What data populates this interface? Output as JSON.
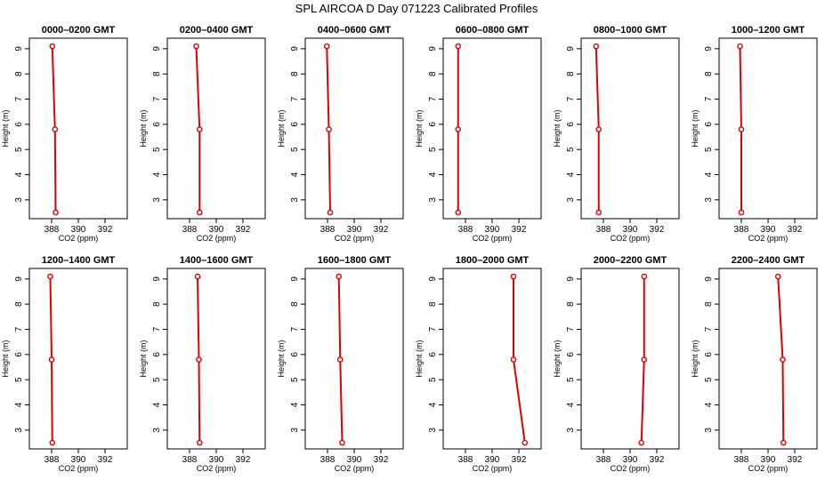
{
  "figure": {
    "title": "SPL AIRCOA D  Day 071223  Calibrated Profiles"
  },
  "colors": {
    "line": "#e00000",
    "marker": "#e00000",
    "axis": "#000000"
  },
  "chart_data": [
    {
      "type": "line",
      "title": "0000–0200 GMT",
      "xlabel": "CO2 (ppm)",
      "ylabel": "Height (m)",
      "xlim": [
        387,
        393
      ],
      "ylim": [
        2.5,
        9.1
      ],
      "xticks": [
        388,
        390,
        392
      ],
      "yticks": [
        3,
        4,
        5,
        6,
        7,
        8,
        9
      ],
      "series": [
        {
          "x": [
            388.05,
            388.25,
            388.3
          ],
          "y": [
            9.1,
            5.8,
            2.5
          ]
        }
      ]
    },
    {
      "type": "line",
      "title": "0200–0400 GMT",
      "xlabel": "CO2 (ppm)",
      "ylabel": "Height (m)",
      "xlim": [
        387,
        393
      ],
      "ylim": [
        2.5,
        9.1
      ],
      "xticks": [
        388,
        390,
        392
      ],
      "yticks": [
        3,
        4,
        5,
        6,
        7,
        8,
        9
      ],
      "series": [
        {
          "x": [
            388.5,
            388.75,
            388.75
          ],
          "y": [
            9.1,
            5.8,
            2.5
          ]
        }
      ]
    },
    {
      "type": "line",
      "title": "0400–0600 GMT",
      "xlabel": "CO2 (ppm)",
      "ylabel": "Height (m)",
      "xlim": [
        387,
        393
      ],
      "ylim": [
        2.5,
        9.1
      ],
      "xticks": [
        388,
        390,
        392
      ],
      "yticks": [
        3,
        4,
        5,
        6,
        7,
        8,
        9
      ],
      "series": [
        {
          "x": [
            387.95,
            388.1,
            388.2
          ],
          "y": [
            9.1,
            5.8,
            2.5
          ]
        }
      ]
    },
    {
      "type": "line",
      "title": "0600–0800 GMT",
      "xlabel": "CO2 (ppm)",
      "ylabel": "Height (m)",
      "xlim": [
        387,
        393
      ],
      "ylim": [
        2.5,
        9.1
      ],
      "xticks": [
        388,
        390,
        392
      ],
      "yticks": [
        3,
        4,
        5,
        6,
        7,
        8,
        9
      ],
      "series": [
        {
          "x": [
            387.45,
            387.45,
            387.45
          ],
          "y": [
            9.1,
            5.8,
            2.5
          ]
        }
      ]
    },
    {
      "type": "line",
      "title": "0800–1000 GMT",
      "xlabel": "CO2 (ppm)",
      "ylabel": "Height (m)",
      "xlim": [
        387,
        393
      ],
      "ylim": [
        2.5,
        9.1
      ],
      "xticks": [
        388,
        390,
        392
      ],
      "yticks": [
        3,
        4,
        5,
        6,
        7,
        8,
        9
      ],
      "series": [
        {
          "x": [
            387.45,
            387.65,
            387.65
          ],
          "y": [
            9.1,
            5.8,
            2.5
          ]
        }
      ]
    },
    {
      "type": "line",
      "title": "1000–1200 GMT",
      "xlabel": "CO2 (ppm)",
      "ylabel": "Height (m)",
      "xlim": [
        387,
        393
      ],
      "ylim": [
        2.5,
        9.1
      ],
      "xticks": [
        388,
        390,
        392
      ],
      "yticks": [
        3,
        4,
        5,
        6,
        7,
        8,
        9
      ],
      "series": [
        {
          "x": [
            387.9,
            388.0,
            388.0
          ],
          "y": [
            9.1,
            5.8,
            2.5
          ]
        }
      ]
    },
    {
      "type": "line",
      "title": "1200–1400 GMT",
      "xlabel": "CO2 (ppm)",
      "ylabel": "Height (m)",
      "xlim": [
        387,
        393
      ],
      "ylim": [
        2.5,
        9.1
      ],
      "xticks": [
        388,
        390,
        392
      ],
      "yticks": [
        3,
        4,
        5,
        6,
        7,
        8,
        9
      ],
      "series": [
        {
          "x": [
            387.9,
            388.0,
            388.05
          ],
          "y": [
            9.1,
            5.8,
            2.5
          ]
        }
      ]
    },
    {
      "type": "line",
      "title": "1400–1600 GMT",
      "xlabel": "CO2 (ppm)",
      "ylabel": "Height (m)",
      "xlim": [
        387,
        393
      ],
      "ylim": [
        2.5,
        9.1
      ],
      "xticks": [
        388,
        390,
        392
      ],
      "yticks": [
        3,
        4,
        5,
        6,
        7,
        8,
        9
      ],
      "series": [
        {
          "x": [
            388.6,
            388.7,
            388.75
          ],
          "y": [
            9.1,
            5.8,
            2.5
          ]
        }
      ]
    },
    {
      "type": "line",
      "title": "1600–1800 GMT",
      "xlabel": "CO2 (ppm)",
      "ylabel": "Height (m)",
      "xlim": [
        387,
        393
      ],
      "ylim": [
        2.5,
        9.1
      ],
      "xticks": [
        388,
        390,
        392
      ],
      "yticks": [
        3,
        4,
        5,
        6,
        7,
        8,
        9
      ],
      "series": [
        {
          "x": [
            388.85,
            388.95,
            389.1
          ],
          "y": [
            9.1,
            5.8,
            2.5
          ]
        }
      ]
    },
    {
      "type": "line",
      "title": "1800–2000 GMT",
      "xlabel": "CO2 (ppm)",
      "ylabel": "Height (m)",
      "xlim": [
        387,
        393
      ],
      "ylim": [
        2.5,
        9.1
      ],
      "xticks": [
        388,
        390,
        392
      ],
      "yticks": [
        3,
        4,
        5,
        6,
        7,
        8,
        9
      ],
      "series": [
        {
          "x": [
            391.6,
            391.6,
            392.45
          ],
          "y": [
            9.1,
            5.8,
            2.5
          ]
        }
      ]
    },
    {
      "type": "line",
      "title": "2000–2200 GMT",
      "xlabel": "CO2 (ppm)",
      "ylabel": "Height (m)",
      "xlim": [
        387,
        393
      ],
      "ylim": [
        2.5,
        9.1
      ],
      "xticks": [
        388,
        390,
        392
      ],
      "yticks": [
        3,
        4,
        5,
        6,
        7,
        8,
        9
      ],
      "series": [
        {
          "x": [
            391.05,
            391.05,
            390.85
          ],
          "y": [
            9.1,
            5.8,
            2.5
          ]
        }
      ]
    },
    {
      "type": "line",
      "title": "2200–2400 GMT",
      "xlabel": "CO2 (ppm)",
      "ylabel": "Height (m)",
      "xlim": [
        387,
        393
      ],
      "ylim": [
        2.5,
        9.1
      ],
      "xticks": [
        388,
        390,
        392
      ],
      "yticks": [
        3,
        4,
        5,
        6,
        7,
        8,
        9
      ],
      "series": [
        {
          "x": [
            390.75,
            391.1,
            391.15
          ],
          "y": [
            9.1,
            5.8,
            2.5
          ]
        }
      ]
    }
  ]
}
